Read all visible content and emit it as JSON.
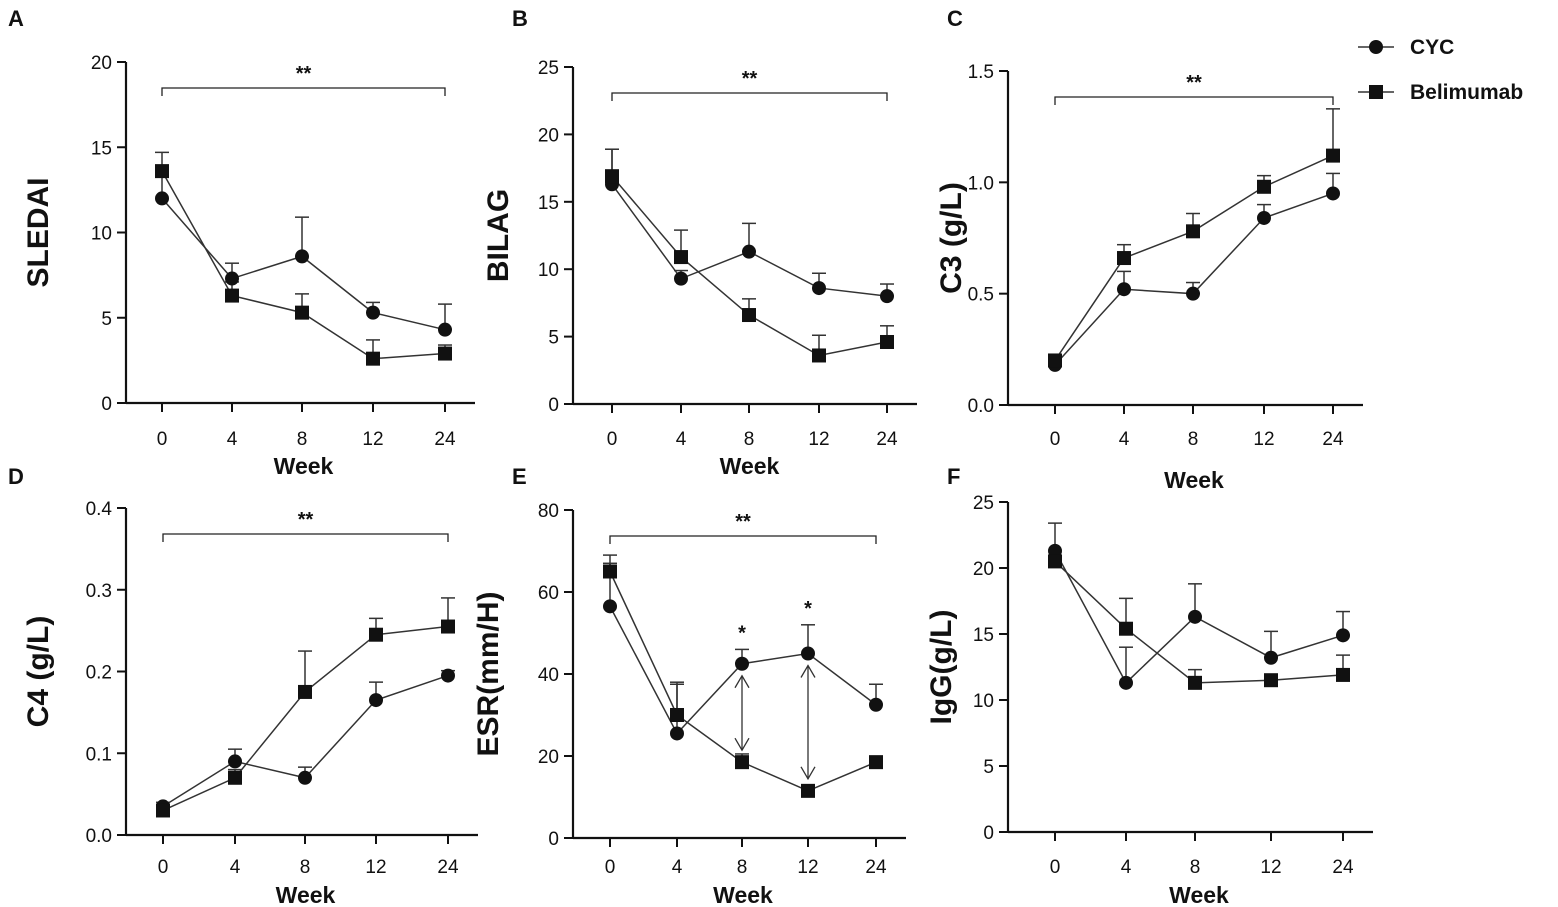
{
  "legend": [
    {
      "name": "CYC",
      "marker": "circle"
    },
    {
      "name": "Belimumab",
      "marker": "square"
    }
  ],
  "chart_data": [
    {
      "panel": "A",
      "type": "line",
      "ylabel": "SLEDAI",
      "xlabel": "Week",
      "categories": [
        "0",
        "4",
        "8",
        "12",
        "24"
      ],
      "ylim": [
        0,
        20
      ],
      "yticks": [
        "0",
        "5",
        "10",
        "15",
        "20"
      ],
      "series": [
        {
          "name": "CYC",
          "values": [
            12.0,
            7.3,
            8.6,
            5.3,
            4.3
          ],
          "error": [
            1.5,
            0.9,
            2.3,
            0.6,
            1.5
          ]
        },
        {
          "name": "Belimumab",
          "values": [
            13.6,
            6.3,
            5.3,
            2.6,
            2.9
          ],
          "error": [
            1.1,
            0.8,
            1.1,
            1.1,
            0.5
          ]
        }
      ],
      "significance": {
        "label": "**",
        "from": "0",
        "to": "24"
      },
      "point_marks": []
    },
    {
      "panel": "B",
      "type": "line",
      "ylabel": "BILAG",
      "xlabel": "Week",
      "categories": [
        "0",
        "4",
        "8",
        "12",
        "24"
      ],
      "ylim": [
        0,
        25
      ],
      "yticks": [
        "0",
        "5",
        "10",
        "15",
        "20",
        "25"
      ],
      "series": [
        {
          "name": "CYC",
          "values": [
            16.3,
            9.3,
            11.3,
            8.6,
            8.0
          ],
          "error": [
            2.6,
            0.6,
            2.1,
            1.1,
            0.9
          ]
        },
        {
          "name": "Belimumab",
          "values": [
            16.9,
            10.9,
            6.6,
            3.6,
            4.6
          ],
          "error": [
            2.0,
            2.0,
            1.2,
            1.5,
            1.2
          ]
        }
      ],
      "significance": {
        "label": "**",
        "from": "0",
        "to": "24"
      },
      "point_marks": []
    },
    {
      "panel": "C",
      "type": "line",
      "ylabel": "C3 (g/L)",
      "xlabel": "Week",
      "categories": [
        "0",
        "4",
        "8",
        "12",
        "24"
      ],
      "ylim": [
        0,
        1.5
      ],
      "yticks": [
        "0.0",
        "0.5",
        "1.0",
        "1.5"
      ],
      "series": [
        {
          "name": "CYC",
          "values": [
            0.18,
            0.52,
            0.5,
            0.84,
            0.95
          ],
          "error": [
            0.02,
            0.08,
            0.05,
            0.06,
            0.09
          ]
        },
        {
          "name": "Belimumab",
          "values": [
            0.2,
            0.66,
            0.78,
            0.98,
            1.12
          ],
          "error": [
            0.02,
            0.06,
            0.08,
            0.05,
            0.21
          ]
        }
      ],
      "significance": {
        "label": "**",
        "from": "0",
        "to": "24"
      },
      "point_marks": []
    },
    {
      "panel": "D",
      "type": "line",
      "ylabel": "C4 (g/L)",
      "xlabel": "Week",
      "categories": [
        "0",
        "4",
        "8",
        "12",
        "24"
      ],
      "ylim": [
        0,
        0.4
      ],
      "yticks": [
        "0.0",
        "0.1",
        "0.2",
        "0.3",
        "0.4"
      ],
      "series": [
        {
          "name": "CYC",
          "values": [
            0.035,
            0.09,
            0.07,
            0.165,
            0.195
          ],
          "error": [
            0.005,
            0.015,
            0.013,
            0.022,
            0.006
          ]
        },
        {
          "name": "Belimumab",
          "values": [
            0.03,
            0.07,
            0.175,
            0.245,
            0.255
          ],
          "error": [
            0.005,
            0.01,
            0.05,
            0.02,
            0.035
          ]
        }
      ],
      "significance": {
        "label": "**",
        "from": "0",
        "to": "24"
      },
      "point_marks": []
    },
    {
      "panel": "E",
      "type": "line",
      "ylabel": "ESR(mm/H)",
      "xlabel": "Week",
      "categories": [
        "0",
        "4",
        "8",
        "12",
        "24"
      ],
      "ylim": [
        0,
        80
      ],
      "yticks": [
        "0",
        "20",
        "40",
        "60",
        "80"
      ],
      "series": [
        {
          "name": "CYC",
          "values": [
            56.5,
            25.5,
            42.5,
            45.0,
            32.5
          ],
          "error": [
            10.5,
            12.0,
            3.5,
            7.0,
            5.0
          ]
        },
        {
          "name": "Belimumab",
          "values": [
            65.0,
            30.0,
            18.5,
            11.5,
            18.5
          ],
          "error": [
            4.0,
            8.0,
            2.0,
            1.0,
            1.0
          ]
        }
      ],
      "significance": {
        "label": "**",
        "from": "0",
        "to": "24"
      },
      "point_marks": [
        {
          "week": "8",
          "label": "*"
        },
        {
          "week": "12",
          "label": "*"
        }
      ]
    },
    {
      "panel": "F",
      "type": "line",
      "ylabel": "IgG(g/L)",
      "xlabel": "Week",
      "categories": [
        "0",
        "4",
        "8",
        "12",
        "24"
      ],
      "ylim": [
        0,
        25
      ],
      "yticks": [
        "0",
        "5",
        "10",
        "15",
        "20",
        "25"
      ],
      "series": [
        {
          "name": "CYC",
          "values": [
            21.3,
            11.3,
            16.3,
            13.2,
            14.9
          ],
          "error": [
            2.1,
            2.7,
            2.5,
            2.0,
            1.8
          ]
        },
        {
          "name": "Belimumab",
          "values": [
            20.5,
            15.4,
            11.3,
            11.5,
            11.9
          ],
          "error": [
            0.4,
            2.3,
            1.0,
            0.4,
            1.5
          ]
        }
      ],
      "significance": null,
      "point_marks": []
    }
  ]
}
